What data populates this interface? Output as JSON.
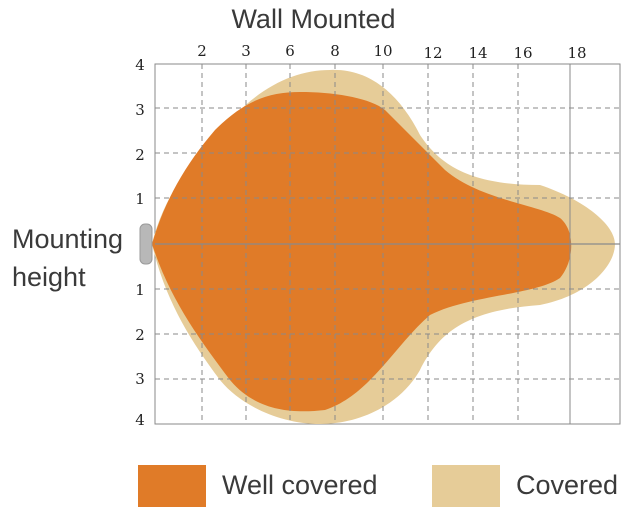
{
  "title": "Wall Mounted",
  "side_label": {
    "line1": "Mounting",
    "line2": "height"
  },
  "x_ticks": [
    "2",
    "3",
    "6",
    "8",
    "10",
    "12",
    "14",
    "16",
    "18"
  ],
  "y_ticks_top": [
    "4",
    "3",
    "2",
    "1"
  ],
  "y_ticks_bottom": [
    "1",
    "2",
    "3",
    "4"
  ],
  "legend": {
    "well_covered": "Well covered",
    "covered": "Covered"
  },
  "colors": {
    "well_covered": "#e07b28",
    "covered": "#e6cc98",
    "grid": "#8a8a8a",
    "mount": "#b8b8b8"
  }
}
